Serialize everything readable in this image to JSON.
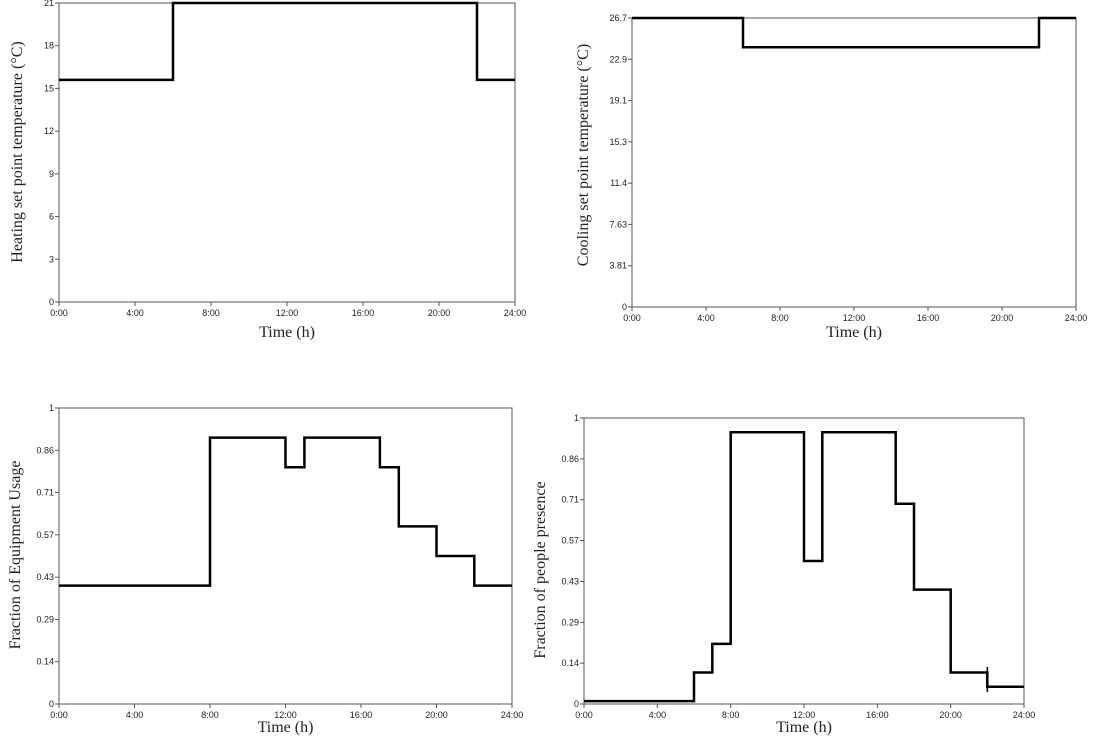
{
  "chart_data": [
    {
      "type": "line",
      "step": true,
      "xlabel": "Time (h)",
      "ylabel": "Heating set point temperature (°C)",
      "xlim": [
        0,
        24
      ],
      "ylim": [
        0,
        21
      ],
      "xticks": [
        "0:00",
        "4:00",
        "8:00",
        "12:00",
        "16:00",
        "20:00",
        "24:00"
      ],
      "yticks": [
        "0",
        "3",
        "6",
        "9",
        "12",
        "15",
        "18",
        "21"
      ],
      "series": [
        {
          "x": [
            0,
            6,
            6,
            22,
            22,
            24
          ],
          "y": [
            15.6,
            15.6,
            21,
            21,
            15.6,
            15.6
          ]
        }
      ]
    },
    {
      "type": "line",
      "step": true,
      "xlabel": "Time (h)",
      "ylabel": "Cooling set point temperature (°C)",
      "xlim": [
        0,
        24
      ],
      "ylim": [
        0,
        26.7
      ],
      "xticks": [
        "0:00",
        "4:00",
        "8:00",
        "12:00",
        "16:00",
        "20:00",
        "24:00"
      ],
      "yticks": [
        "0",
        "3.81",
        "7.63",
        "11.4",
        "15.3",
        "19.1",
        "22.9",
        "26.7"
      ],
      "series": [
        {
          "x": [
            0,
            6,
            6,
            22,
            22,
            24
          ],
          "y": [
            26.7,
            26.7,
            24.0,
            24.0,
            26.7,
            26.7
          ]
        }
      ]
    },
    {
      "type": "line",
      "step": true,
      "xlabel": "Time (h)",
      "ylabel": "Fraction of Equipment Usage",
      "xlim": [
        0,
        24
      ],
      "ylim": [
        0,
        1
      ],
      "xticks": [
        "0:00",
        "4:00",
        "8:00",
        "12:00",
        "16:00",
        "20:00",
        "24:00"
      ],
      "yticks": [
        "0",
        "0.14",
        "0.29",
        "0.43",
        "0.57",
        "0.71",
        "0.86",
        "1"
      ],
      "series": [
        {
          "x": [
            0,
            8,
            8,
            12,
            12,
            13,
            13,
            17,
            17,
            18,
            18,
            20,
            20,
            22,
            22,
            24
          ],
          "y": [
            0.4,
            0.4,
            0.9,
            0.9,
            0.8,
            0.8,
            0.9,
            0.9,
            0.8,
            0.8,
            0.6,
            0.6,
            0.5,
            0.5,
            0.4,
            0.4
          ]
        }
      ]
    },
    {
      "type": "line",
      "step": true,
      "xlabel": "Time (h)",
      "ylabel": "Fraction of people presence",
      "xlim": [
        0,
        24
      ],
      "ylim": [
        0,
        1
      ],
      "xticks": [
        "0:00",
        "4:00",
        "8:00",
        "12:00",
        "16:00",
        "20:00",
        "24:00"
      ],
      "yticks": [
        "0",
        "0.14",
        "0.29",
        "0.43",
        "0.57",
        "0.71",
        "0.86",
        "1"
      ],
      "series": [
        {
          "x": [
            0,
            6,
            6,
            7,
            7,
            8,
            8,
            12,
            12,
            13,
            13,
            17,
            17,
            18,
            18,
            20,
            20,
            22,
            22,
            24
          ],
          "y": [
            0.01,
            0.01,
            0.11,
            0.11,
            0.21,
            0.21,
            0.95,
            0.95,
            0.5,
            0.5,
            0.95,
            0.95,
            0.7,
            0.7,
            0.4,
            0.4,
            0.11,
            0.11,
            0.06,
            0.06
          ]
        }
      ]
    }
  ]
}
